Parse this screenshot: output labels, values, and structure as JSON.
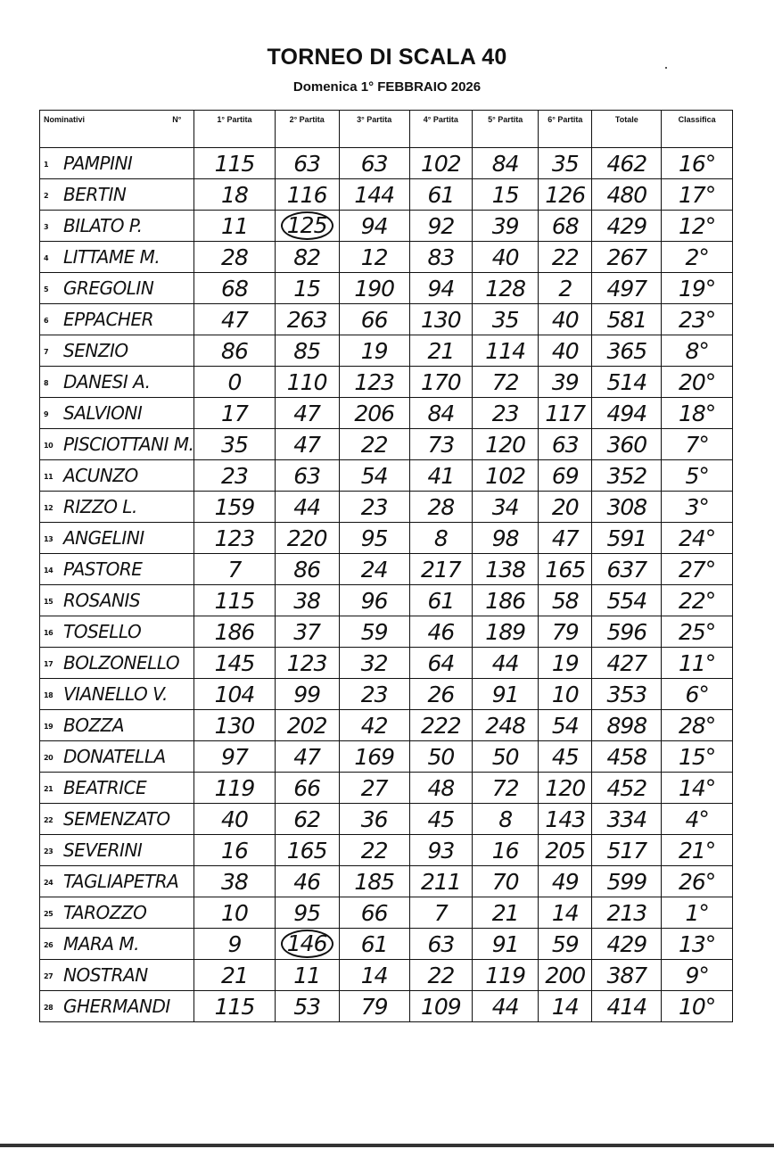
{
  "title": "TORNEO DI SCALA 40",
  "subtitle": "Domenica 1° FEBBRAIO 2026",
  "columns": [
    "Nominativi",
    "N°",
    "1° Partita",
    "2° Partita",
    "3° Partita",
    "4° Partita",
    "5° Partita",
    "6° Partita",
    "Totale",
    "Classifica"
  ],
  "rows": [
    {
      "n": "1",
      "name": "PAMPINI",
      "scores": [
        "115",
        "63",
        "63",
        "102",
        "84",
        "35"
      ],
      "total": "462",
      "rank": "16°"
    },
    {
      "n": "2",
      "name": "BERTIN",
      "scores": [
        "18",
        "116",
        "144",
        "61",
        "15",
        "126"
      ],
      "total": "480",
      "rank": "17°"
    },
    {
      "n": "3",
      "name": "BILATO P.",
      "scores": [
        "11",
        "125",
        "94",
        "92",
        "39",
        "68"
      ],
      "total": "429",
      "rank": "12°",
      "circled": 1
    },
    {
      "n": "4",
      "name": "LITTAME M.",
      "scores": [
        "28",
        "82",
        "12",
        "83",
        "40",
        "22"
      ],
      "total": "267",
      "rank": "2°"
    },
    {
      "n": "5",
      "name": "GREGOLIN",
      "scores": [
        "68",
        "15",
        "190",
        "94",
        "128",
        "2"
      ],
      "total": "497",
      "rank": "19°"
    },
    {
      "n": "6",
      "name": "EPPACHER",
      "scores": [
        "47",
        "263",
        "66",
        "130",
        "35",
        "40"
      ],
      "total": "581",
      "rank": "23°"
    },
    {
      "n": "7",
      "name": "SENZIO",
      "scores": [
        "86",
        "85",
        "19",
        "21",
        "114",
        "40"
      ],
      "total": "365",
      "rank": "8°"
    },
    {
      "n": "8",
      "name": "DANESI A.",
      "scores": [
        "0",
        "110",
        "123",
        "170",
        "72",
        "39"
      ],
      "total": "514",
      "rank": "20°"
    },
    {
      "n": "9",
      "name": "SALVIONI",
      "scores": [
        "17",
        "47",
        "206",
        "84",
        "23",
        "117"
      ],
      "total": "494",
      "rank": "18°"
    },
    {
      "n": "10",
      "name": "PISCIOTTANI M.",
      "scores": [
        "35",
        "47",
        "22",
        "73",
        "120",
        "63"
      ],
      "total": "360",
      "rank": "7°"
    },
    {
      "n": "11",
      "name": "ACUNZO",
      "scores": [
        "23",
        "63",
        "54",
        "41",
        "102",
        "69"
      ],
      "total": "352",
      "rank": "5°"
    },
    {
      "n": "12",
      "name": "RIZZO L.",
      "scores": [
        "159",
        "44",
        "23",
        "28",
        "34",
        "20"
      ],
      "total": "308",
      "rank": "3°"
    },
    {
      "n": "13",
      "name": "ANGELINI",
      "scores": [
        "123",
        "220",
        "95",
        "8",
        "98",
        "47"
      ],
      "total": "591",
      "rank": "24°"
    },
    {
      "n": "14",
      "name": "PASTORE",
      "scores": [
        "7",
        "86",
        "24",
        "217",
        "138",
        "165"
      ],
      "total": "637",
      "rank": "27°"
    },
    {
      "n": "15",
      "name": "ROSANIS",
      "scores": [
        "115",
        "38",
        "96",
        "61",
        "186",
        "58"
      ],
      "total": "554",
      "rank": "22°"
    },
    {
      "n": "16",
      "name": "TOSELLO",
      "scores": [
        "186",
        "37",
        "59",
        "46",
        "189",
        "79"
      ],
      "total": "596",
      "rank": "25°"
    },
    {
      "n": "17",
      "name": "BOLZONELLO",
      "scores": [
        "145",
        "123",
        "32",
        "64",
        "44",
        "19"
      ],
      "total": "427",
      "rank": "11°"
    },
    {
      "n": "18",
      "name": "VIANELLO V.",
      "scores": [
        "104",
        "99",
        "23",
        "26",
        "91",
        "10"
      ],
      "total": "353",
      "rank": "6°"
    },
    {
      "n": "19",
      "name": "BOZZA",
      "scores": [
        "130",
        "202",
        "42",
        "222",
        "248",
        "54"
      ],
      "total": "898",
      "rank": "28°"
    },
    {
      "n": "20",
      "name": "DONATELLA",
      "scores": [
        "97",
        "47",
        "169",
        "50",
        "50",
        "45"
      ],
      "total": "458",
      "rank": "15°"
    },
    {
      "n": "21",
      "name": "BEATRICE",
      "scores": [
        "119",
        "66",
        "27",
        "48",
        "72",
        "120"
      ],
      "total": "452",
      "rank": "14°"
    },
    {
      "n": "22",
      "name": "SEMENZATO",
      "scores": [
        "40",
        "62",
        "36",
        "45",
        "8",
        "143"
      ],
      "total": "334",
      "rank": "4°"
    },
    {
      "n": "23",
      "name": "SEVERINI",
      "scores": [
        "16",
        "165",
        "22",
        "93",
        "16",
        "205"
      ],
      "total": "517",
      "rank": "21°"
    },
    {
      "n": "24",
      "name": "TAGLIAPETRA",
      "scores": [
        "38",
        "46",
        "185",
        "211",
        "70",
        "49"
      ],
      "total": "599",
      "rank": "26°"
    },
    {
      "n": "25",
      "name": "TAROZZO",
      "scores": [
        "10",
        "95",
        "66",
        "7",
        "21",
        "14"
      ],
      "total": "213",
      "rank": "1°"
    },
    {
      "n": "26",
      "name": "MARA M.",
      "scores": [
        "9",
        "146",
        "61",
        "63",
        "91",
        "59"
      ],
      "total": "429",
      "rank": "13°",
      "circled": 1
    },
    {
      "n": "27",
      "name": "NOSTRAN",
      "scores": [
        "21",
        "11",
        "14",
        "22",
        "119",
        "200"
      ],
      "total": "387",
      "rank": "9°"
    },
    {
      "n": "28",
      "name": "GHERMANDI",
      "scores": [
        "115",
        "53",
        "79",
        "109",
        "44",
        "14"
      ],
      "total": "414",
      "rank": "10°"
    }
  ]
}
